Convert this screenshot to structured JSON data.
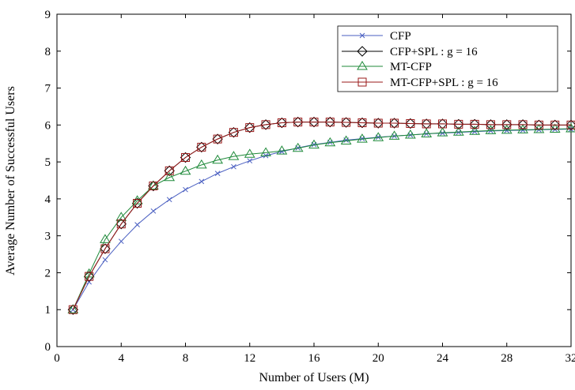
{
  "chart_data": {
    "type": "line",
    "xlabel": "Number of Users (M)",
    "ylabel": "Average Number of Successful Users",
    "xlim": [
      0,
      32
    ],
    "ylim": [
      0,
      9
    ],
    "xticks": [
      0,
      4,
      8,
      12,
      16,
      20,
      24,
      28,
      32
    ],
    "yticks": [
      0,
      1,
      2,
      3,
      4,
      5,
      6,
      7,
      8,
      9
    ],
    "grid": false,
    "legend_position": "top-right",
    "x": [
      1,
      2,
      3,
      4,
      5,
      6,
      7,
      8,
      9,
      10,
      11,
      12,
      13,
      14,
      15,
      16,
      17,
      18,
      19,
      20,
      21,
      22,
      23,
      24,
      25,
      26,
      27,
      28,
      29,
      30,
      31,
      32
    ],
    "series": [
      {
        "name": "CFP",
        "color": "#4a5fc1",
        "marker": "x",
        "values": [
          1,
          1.75,
          2.35,
          2.85,
          3.3,
          3.67,
          3.98,
          4.25,
          4.47,
          4.69,
          4.87,
          5.03,
          5.17,
          5.28,
          5.38,
          5.47,
          5.53,
          5.59,
          5.63,
          5.67,
          5.7,
          5.73,
          5.76,
          5.78,
          5.8,
          5.82,
          5.84,
          5.85,
          5.86,
          5.87,
          5.88,
          5.89
        ]
      },
      {
        "name": "CFP+SPL : g = 16",
        "color": "#000000",
        "marker": "diamond",
        "values": [
          1,
          1.9,
          2.65,
          3.32,
          3.88,
          4.35,
          4.76,
          5.12,
          5.4,
          5.62,
          5.8,
          5.93,
          6.01,
          6.06,
          6.08,
          6.08,
          6.08,
          6.07,
          6.06,
          6.05,
          6.05,
          6.04,
          6.03,
          6.03,
          6.02,
          6.02,
          6.01,
          6.01,
          6.01,
          6.0,
          6.0,
          6.0
        ]
      },
      {
        "name": "MT-CFP",
        "color": "#1f8a3a",
        "marker": "triangle",
        "values": [
          1,
          1.97,
          2.9,
          3.5,
          3.95,
          4.35,
          4.58,
          4.75,
          4.92,
          5.05,
          5.15,
          5.21,
          5.25,
          5.3,
          5.37,
          5.46,
          5.52,
          5.57,
          5.62,
          5.66,
          5.7,
          5.73,
          5.76,
          5.79,
          5.81,
          5.83,
          5.85,
          5.86,
          5.87,
          5.88,
          5.89,
          5.9
        ]
      },
      {
        "name": "MT-CFP+SPL : g = 16",
        "color": "#9a1a1a",
        "marker": "square",
        "values": [
          1,
          1.9,
          2.65,
          3.32,
          3.88,
          4.35,
          4.76,
          5.12,
          5.4,
          5.62,
          5.8,
          5.93,
          6.01,
          6.06,
          6.08,
          6.08,
          6.08,
          6.07,
          6.06,
          6.05,
          6.05,
          6.04,
          6.03,
          6.03,
          6.02,
          6.02,
          6.01,
          6.01,
          6.01,
          6.0,
          6.0,
          6.0
        ]
      }
    ]
  }
}
